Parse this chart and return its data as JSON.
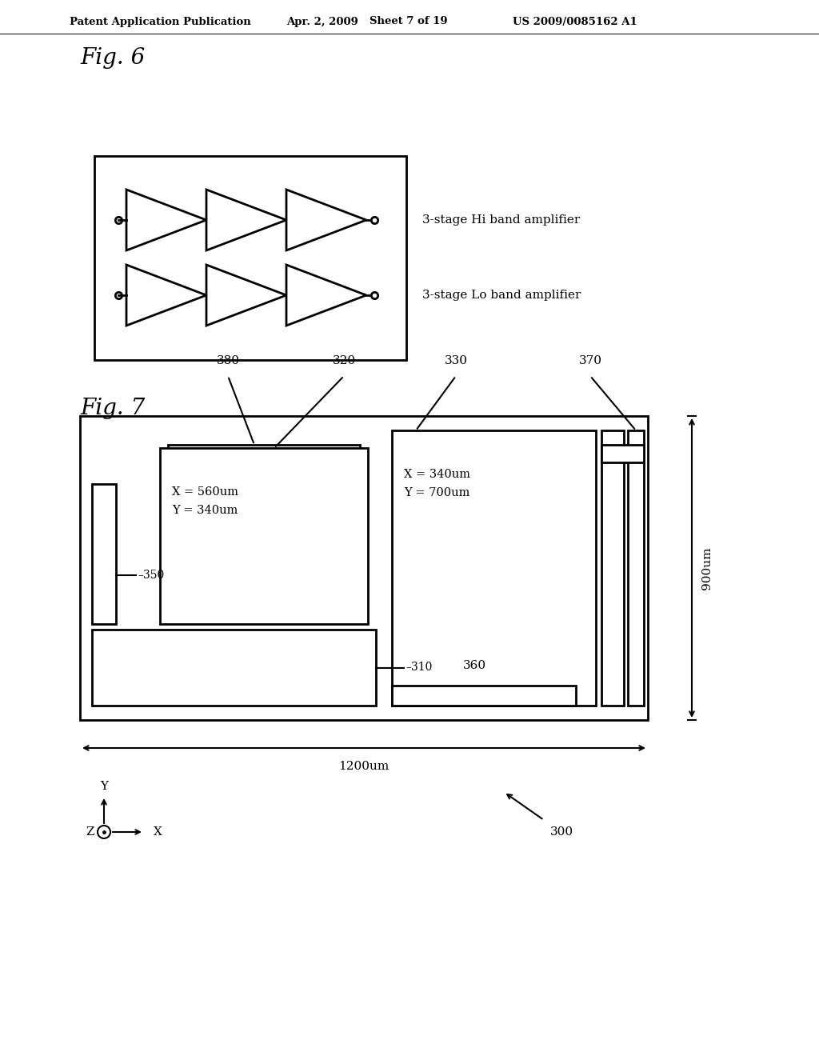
{
  "bg_color": "#ffffff",
  "header_text": "Patent Application Publication",
  "header_date": "Apr. 2, 2009",
  "header_sheet": "Sheet 7 of 19",
  "header_patent": "US 2009/0085162 A1",
  "fig6_label": "Fig. 6",
  "fig7_label": "Fig. 7",
  "hi_band_label": "3-stage Hi band amplifier",
  "lo_band_label": "3-stage Lo band amplifier",
  "text_560x": "X = 560um",
  "text_340y": "Y = 340um",
  "text_340x": "X = 340um",
  "text_700y": "Y = 700um",
  "dim_1200": "1200um",
  "dim_900": "900um",
  "line_color": "#000000"
}
